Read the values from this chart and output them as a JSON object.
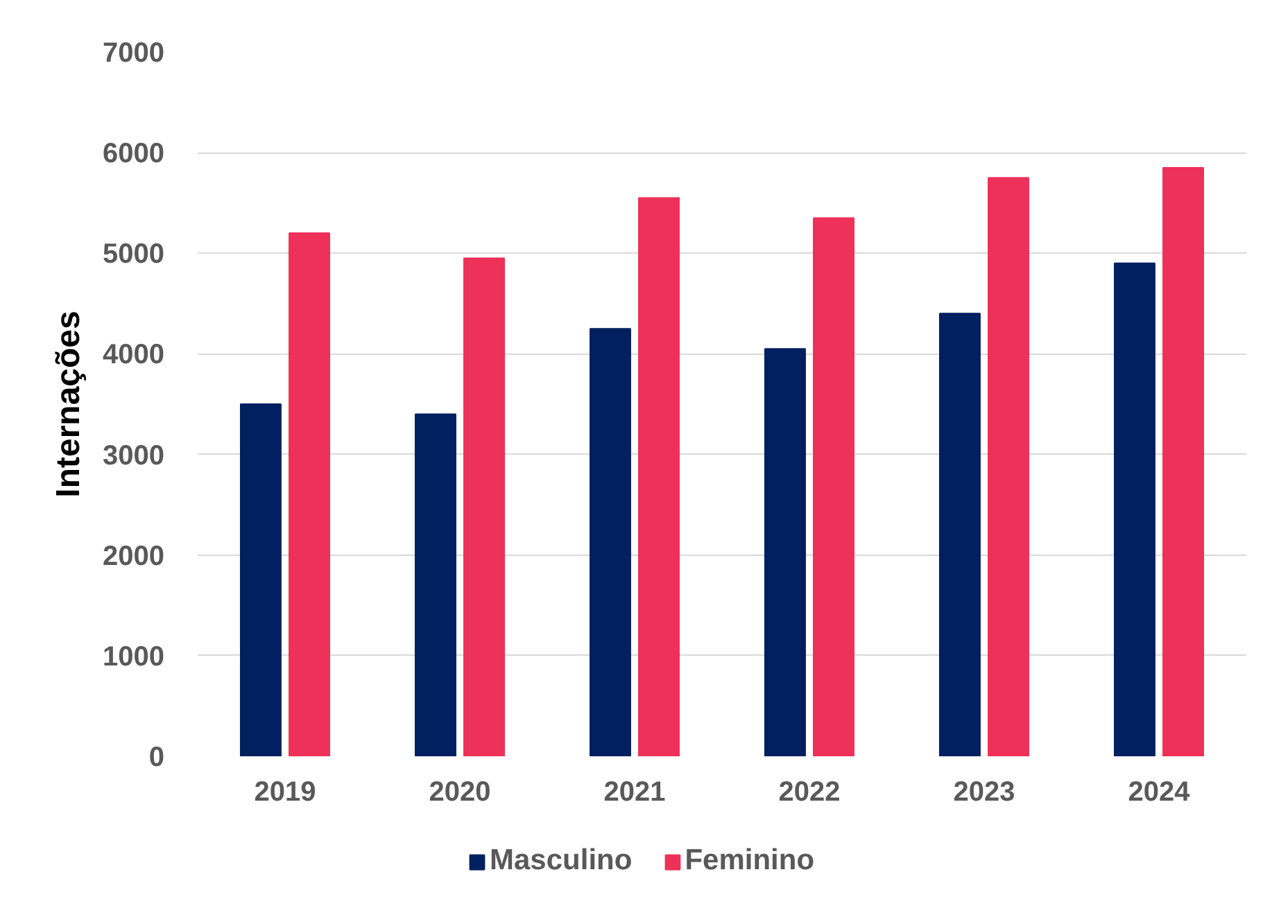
{
  "chart_data": {
    "type": "bar",
    "ylabel": "Internações",
    "categories": [
      "2019",
      "2020",
      "2021",
      "2022",
      "2023",
      "2024"
    ],
    "series": [
      {
        "name": "Masculino",
        "color": "#002060",
        "values": [
          3500,
          3400,
          4250,
          4050,
          4400,
          4900
        ]
      },
      {
        "name": "Feminino",
        "color": "#ee3158",
        "values": [
          5200,
          4950,
          5550,
          5350,
          5750,
          5850
        ]
      }
    ],
    "ylim": [
      0,
      7000
    ],
    "yticks": [
      0,
      1000,
      2000,
      3000,
      4000,
      5000,
      6000,
      7000
    ],
    "grid": "y",
    "legend": "bottom"
  }
}
